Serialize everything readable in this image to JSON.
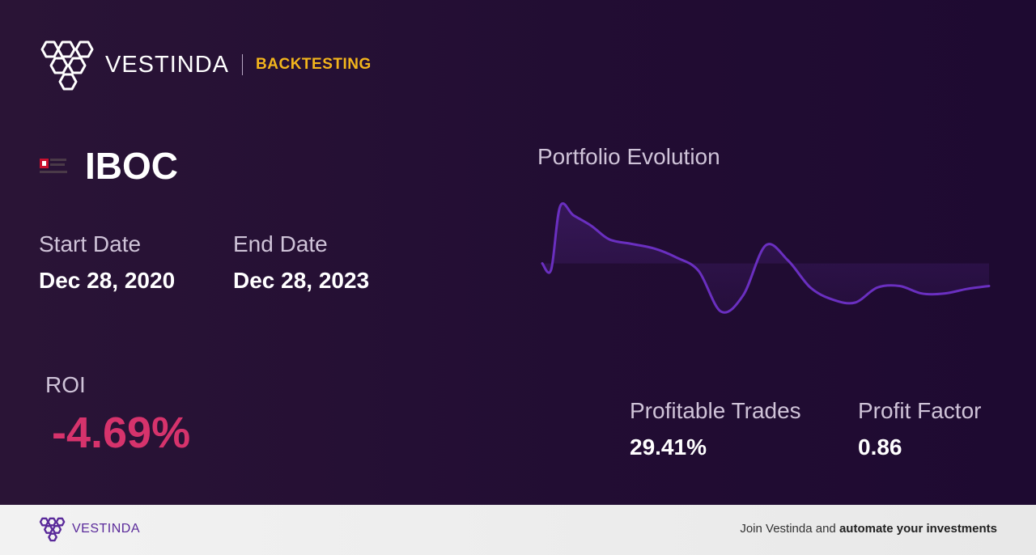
{
  "header": {
    "brand": "VESTINDA",
    "section": "BACKTESTING"
  },
  "asset": {
    "ticker": "IBOC",
    "logo_icon": "bank-logo-icon"
  },
  "dates": {
    "start_label": "Start Date",
    "start_value": "Dec 28, 2020",
    "end_label": "End Date",
    "end_value": "Dec 28, 2023"
  },
  "roi": {
    "label": "ROI",
    "value": "-4.69%"
  },
  "stats": {
    "profitable_label": "Profitable Trades",
    "profitable_value": "29.41%",
    "factor_label": "Profit Factor",
    "factor_value": "0.86"
  },
  "chart_data": {
    "type": "area",
    "title": "Portfolio Evolution",
    "xlabel": "",
    "ylabel": "",
    "baseline": 0,
    "ylim": [
      -4,
      4.5
    ],
    "x": [
      0,
      2,
      4,
      7,
      11,
      15,
      20,
      25,
      30,
      35,
      40,
      45,
      50,
      55,
      60,
      65,
      70,
      75,
      80,
      85,
      90,
      95,
      100
    ],
    "values": [
      0,
      -0.4,
      3.8,
      3.2,
      2.5,
      1.6,
      1.3,
      1.0,
      0.4,
      -0.5,
      -3.2,
      -2.1,
      1.2,
      0.2,
      -1.6,
      -2.4,
      -2.6,
      -1.6,
      -1.5,
      -2.0,
      -2.0,
      -1.7,
      -1.5
    ],
    "line_color": "#6a2fc0",
    "grid": false
  },
  "footer": {
    "brand": "VESTINDA",
    "cta_prefix": "Join Vestinda and ",
    "cta_bold": "automate your investments"
  }
}
